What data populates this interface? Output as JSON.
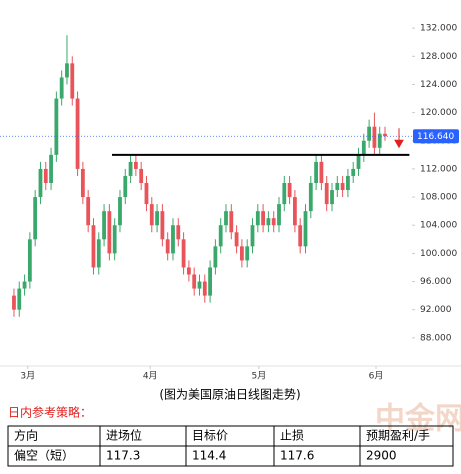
{
  "chart_data": {
    "type": "candlestick",
    "caption": "(图为美国原油日线图走势)",
    "open": [
      94,
      92,
      95,
      96,
      102,
      108,
      112,
      110,
      114,
      122,
      125,
      127,
      122,
      112,
      108,
      104,
      98,
      102,
      106,
      100,
      104,
      108,
      111,
      113,
      112,
      110,
      107,
      104,
      106,
      102,
      100,
      104,
      102,
      98,
      97,
      95,
      96,
      94,
      98,
      101,
      104,
      106,
      103,
      101,
      99,
      101,
      104,
      106,
      104,
      105,
      104,
      107,
      110,
      108,
      104,
      101,
      106,
      110,
      113,
      110,
      107,
      109,
      110,
      109,
      111,
      112,
      114,
      116,
      118,
      115,
      117
    ],
    "high": [
      95,
      96,
      97,
      103,
      109,
      113,
      113,
      115,
      123,
      126,
      131,
      128,
      123,
      113,
      109,
      105,
      103,
      107,
      107,
      105,
      109,
      112,
      114,
      114,
      113,
      111,
      108,
      107,
      107,
      103,
      105,
      105,
      103,
      99,
      98,
      97,
      97,
      99,
      102,
      105,
      107,
      107,
      104,
      102,
      102,
      105,
      107,
      107,
      106,
      106,
      108,
      111,
      111,
      109,
      105,
      107,
      111,
      114,
      114,
      111,
      110,
      111,
      111,
      112,
      113,
      115,
      117,
      119,
      120,
      118,
      118
    ],
    "low": [
      91,
      91,
      94,
      95,
      101,
      107,
      109,
      109,
      113,
      121,
      124,
      121,
      111,
      107,
      103,
      97,
      97,
      101,
      99,
      99,
      103,
      107,
      110,
      111,
      109,
      106,
      103,
      103,
      101,
      99,
      99,
      101,
      97,
      96,
      94,
      94,
      93,
      93,
      97,
      100,
      103,
      102,
      100,
      98,
      98,
      100,
      103,
      103,
      103,
      103,
      103,
      106,
      107,
      103,
      100,
      100,
      105,
      109,
      109,
      106,
      106,
      108,
      108,
      108,
      110,
      111,
      113,
      115,
      114,
      114,
      116
    ],
    "close": [
      92,
      95,
      96,
      102,
      108,
      112,
      110,
      114,
      122,
      125,
      127,
      122,
      112,
      108,
      104,
      98,
      102,
      106,
      100,
      104,
      108,
      111,
      113,
      112,
      110,
      107,
      104,
      106,
      102,
      100,
      104,
      102,
      98,
      97,
      95,
      96,
      94,
      98,
      101,
      104,
      106,
      103,
      101,
      99,
      101,
      104,
      106,
      104,
      105,
      104,
      107,
      110,
      108,
      104,
      101,
      106,
      110,
      113,
      110,
      107,
      109,
      110,
      109,
      111,
      112,
      114,
      116,
      118,
      115,
      117,
      116.64
    ],
    "up_color": "#3aa86b",
    "down_color": "#e8545a",
    "xlim": [
      -1.2,
      74.6
    ],
    "xticks": [
      {
        "value": 2.6,
        "label": "3月"
      },
      {
        "value": 25.7,
        "label": "4月"
      },
      {
        "value": 46.2,
        "label": "5月"
      },
      {
        "value": 68.3,
        "label": "6月"
      }
    ],
    "ylim": [
      84,
      136
    ],
    "yticks": [
      {
        "value": 88,
        "label": "88.000"
      },
      {
        "value": 92,
        "label": "92.000"
      },
      {
        "value": 96,
        "label": "96.000"
      },
      {
        "value": 100,
        "label": "100.000"
      },
      {
        "value": 104,
        "label": "104.000"
      },
      {
        "value": 108,
        "label": "108.000"
      },
      {
        "value": 112,
        "label": "112.000"
      },
      {
        "value": 116,
        "label": "116.000"
      },
      {
        "value": 120,
        "label": "120.000"
      },
      {
        "value": 124,
        "label": "124.000"
      },
      {
        "value": 128,
        "label": "128.000"
      },
      {
        "value": 132,
        "label": "132.000"
      }
    ],
    "last_price": {
      "value": 116.64,
      "label": "116.640"
    },
    "support_level": 114
  },
  "strategy": {
    "title": "日内参考策略：",
    "table": {
      "header": [
        "方向",
        "进场位",
        "目标价",
        "止损",
        "预期盈利/手"
      ],
      "rows": [
        [
          "偏空（短）",
          "117.3",
          "114.4",
          "117.6",
          "2900"
        ]
      ]
    }
  },
  "watermark": "中金网"
}
